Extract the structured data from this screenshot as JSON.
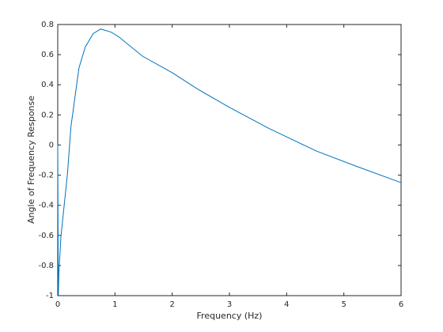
{
  "chart_data": {
    "type": "line",
    "xlabel": "Frequency (Hz)",
    "ylabel": "Angle of Frequency Response",
    "x": [
      0,
      0.01,
      0.02,
      0.055,
      0.17,
      0.23,
      0.37,
      0.48,
      0.62,
      0.75,
      0.93,
      1.06,
      1.48,
      2.0,
      2.45,
      3.0,
      3.69,
      4.52,
      5.21,
      6
    ],
    "series": [
      {
        "color": "#0072bd",
        "values": [
          0,
          -1,
          -0.85,
          -0.61,
          -0.19,
          0.12,
          0.51,
          0.65,
          0.74,
          0.77,
          0.75,
          0.72,
          0.59,
          0.48,
          0.37,
          0.25,
          0.11,
          -0.04,
          -0.14,
          -0.25
        ]
      }
    ],
    "xlim": [
      0,
      6
    ],
    "ylim": [
      -1,
      0.8
    ],
    "xticks": [
      0,
      1,
      2,
      3,
      4,
      5,
      6
    ],
    "yticks": [
      -1,
      -0.8,
      -0.6,
      -0.4,
      -0.2,
      0,
      0.2,
      0.4,
      0.6,
      0.8
    ],
    "grid": false
  }
}
